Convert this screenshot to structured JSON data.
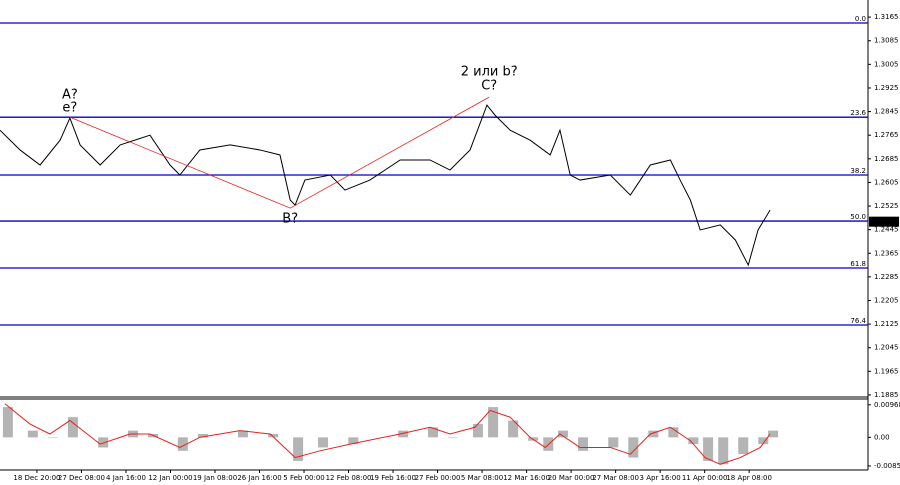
{
  "chart_data": {
    "type": "line",
    "x": [
      0,
      4.5,
      9,
      13.5,
      15.7,
      18,
      22.5,
      27,
      33.7,
      38.2,
      40.4,
      44.9,
      51.7,
      58.4,
      62.9,
      65.2,
      66.3,
      68.5,
      74.2,
      77.5,
      83.1,
      89.9,
      96.6,
      101.1,
      105.6,
      109.4,
      111.2,
      114.6,
      119.1,
      123.6,
      125.8,
      128.1,
      130.3,
      137.1,
      141.6,
      146.1,
      150.6,
      152.8,
      155.1,
      157.3,
      161.8,
      165.2,
      168.1,
      170.3,
      173
    ],
    "series": [
      {
        "color": "#000000",
        "values": [
          1.2782,
          1.2715,
          1.2664,
          1.2748,
          1.2823,
          1.2732,
          1.2664,
          1.2732,
          1.2765,
          1.2664,
          1.263,
          1.2715,
          1.2732,
          1.2715,
          1.2698,
          1.2545,
          1.2528,
          1.2613,
          1.263,
          1.2579,
          1.2613,
          1.2681,
          1.2681,
          1.2647,
          1.2715,
          1.2867,
          1.2833,
          1.2782,
          1.2748,
          1.2698,
          1.2782,
          1.263,
          1.2613,
          1.263,
          1.2562,
          1.2664,
          1.2681,
          1.2613,
          1.2545,
          1.2444,
          1.2461,
          1.241,
          1.2325,
          1.2444,
          1.2511
        ]
      }
    ],
    "xlim": [
      0,
      195
    ],
    "xticks": [
      {
        "value": 8.3,
        "label": "18 Dec 20:00"
      },
      {
        "value": 18.3,
        "label": "27 Dec 08:00"
      },
      {
        "value": 28.3,
        "label": "4 Jan 16:00"
      },
      {
        "value": 38.3,
        "label": "12 Jan 00:00"
      },
      {
        "value": 48.3,
        "label": "19 Jan 08:00"
      },
      {
        "value": 58.3,
        "label": "26 Jan 16:00"
      },
      {
        "value": 68.3,
        "label": "5 Feb 00:00"
      },
      {
        "value": 78.3,
        "label": "12 Feb 08:00"
      },
      {
        "value": 88.3,
        "label": "19 Feb 16:00"
      },
      {
        "value": 98.3,
        "label": "27 Feb 00:00"
      },
      {
        "value": 108.3,
        "label": "5 Mar 08:00"
      },
      {
        "value": 118.3,
        "label": "12 Mar 16:00"
      },
      {
        "value": 128.3,
        "label": "20 Mar 00:00"
      },
      {
        "value": 138.3,
        "label": "27 Mar 08:00"
      },
      {
        "value": 148.3,
        "label": "3 Apr 16:00"
      },
      {
        "value": 158.3,
        "label": "11 Apr 00:00"
      },
      {
        "value": 168.3,
        "label": "18 Apr 08:00"
      }
    ],
    "ylim": [
      1.1878,
      1.3223
    ],
    "yticks": [
      1.3165,
      1.3085,
      1.3005,
      1.2925,
      1.2845,
      1.2765,
      1.2685,
      1.2605,
      1.2525,
      1.2445,
      1.2365,
      1.2285,
      1.2205,
      1.2125,
      1.2045,
      1.1965,
      1.1885
    ],
    "last_price": 1.2472,
    "fib_levels": [
      {
        "label": "0.0",
        "value": 1.3145
      },
      {
        "label": "23.6",
        "value": 1.2826
      },
      {
        "label": "38.2",
        "value": 1.263
      },
      {
        "label": "50.0",
        "value": 1.2474
      },
      {
        "label": "61.8",
        "value": 1.2315
      },
      {
        "label": "76.4",
        "value": 1.2122
      }
    ],
    "fib_color": "#0000cc",
    "waves": [
      {
        "label": "A?",
        "sublabel": "e?",
        "x": 15.7,
        "value": 1.2826
      },
      {
        "label": "B?",
        "x": 65.2,
        "value": 1.2518
      },
      {
        "label": "C?",
        "sublabel": "2 или b?",
        "x": 109.9,
        "value": 1.2894
      }
    ],
    "wave_color": "#e8201c",
    "wave_sub_colors": [
      "#e8201c",
      "#2222cc"
    ],
    "oscillator": {
      "x": [
        1.1,
        6.7,
        11.2,
        15.7,
        22.5,
        29.2,
        33.7,
        40.4,
        44.9,
        53.9,
        60.7,
        66.3,
        71.9,
        78.7,
        89.9,
        96.6,
        101.1,
        106.7,
        110.1,
        114.6,
        119.1,
        122.5,
        125.8,
        130.3,
        137.1,
        141.6,
        146.1,
        150.6,
        155.1,
        158.4,
        161.8,
        166.3,
        170.8,
        173
      ],
      "histogram": {
        "color": "#b4b4b4",
        "values": [
          0.009,
          0.002,
          0.0,
          0.006,
          -0.003,
          0.002,
          0.001,
          -0.004,
          0.001,
          0.002,
          0.001,
          -0.007,
          -0.003,
          -0.002,
          0.002,
          0.003,
          0.0,
          0.004,
          0.009,
          0.005,
          -0.001,
          -0.004,
          0.002,
          -0.004,
          -0.003,
          -0.006,
          0.002,
          0.003,
          -0.002,
          -0.007,
          -0.008,
          -0.005,
          -0.002,
          0.002
        ]
      },
      "signal": {
        "color": "#e8201c",
        "values": [
          0.01,
          0.004,
          0.001,
          0.005,
          -0.002,
          0.001,
          0.001,
          -0.003,
          0.0,
          0.002,
          0.001,
          -0.006,
          -0.004,
          -0.002,
          0.001,
          0.003,
          0.001,
          0.003,
          0.008,
          0.006,
          0.0,
          -0.003,
          0.001,
          -0.003,
          -0.003,
          -0.005,
          0.001,
          0.003,
          -0.001,
          -0.006,
          -0.008,
          -0.006,
          -0.003,
          0.001
        ]
      },
      "ylim": [
        -0.0097,
        0.0114
      ],
      "yticks": [
        0.00968,
        {
          "value": 0,
          "label": "0.00"
        },
        -0.0085
      ]
    }
  }
}
